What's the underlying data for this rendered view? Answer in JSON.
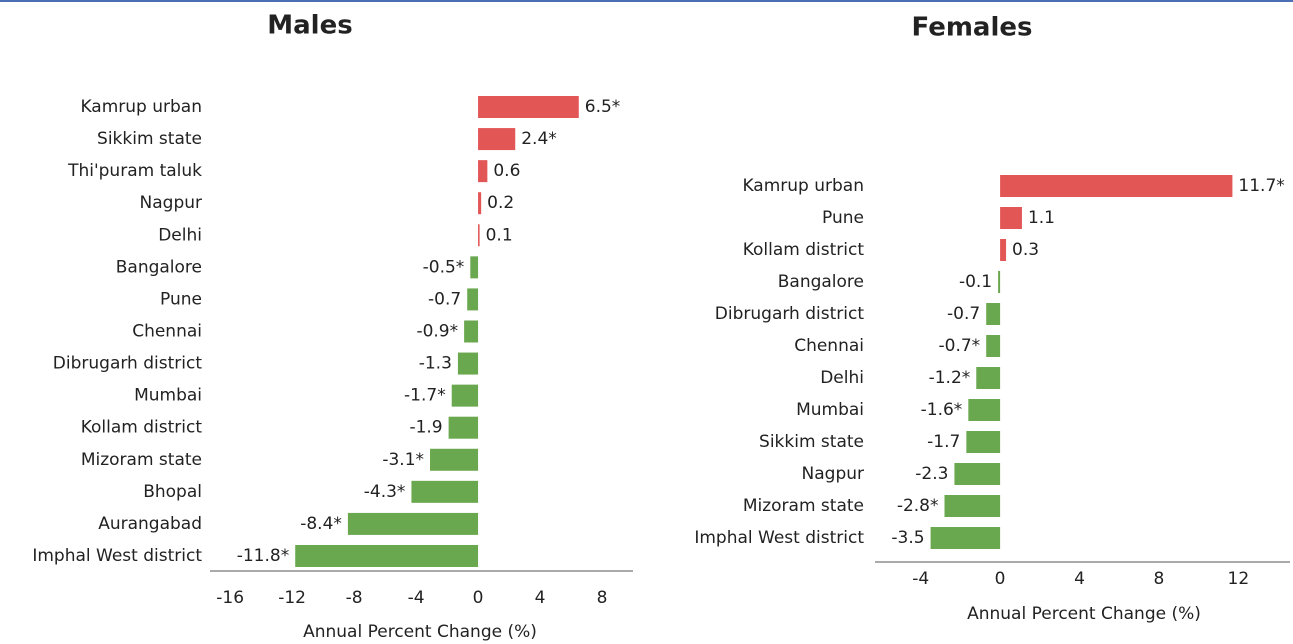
{
  "chart_data": [
    {
      "type": "barh",
      "title": "Males",
      "categories": [
        "Kamrup urban",
        "Sikkim state",
        "Thi'puram taluk",
        "Nagpur",
        "Delhi",
        "Bangalore",
        "Pune",
        "Chennai",
        "Dibrugarh district",
        "Mumbai",
        "Kollam district",
        "Mizoram state",
        "Bhopal",
        "Aurangabad",
        "Imphal West district"
      ],
      "values": [
        6.5,
        2.4,
        0.6,
        0.2,
        0.1,
        -0.5,
        -0.7,
        -0.9,
        -1.3,
        -1.7,
        -1.9,
        -3.1,
        -4.3,
        -8.4,
        -11.8
      ],
      "value_labels": [
        "6.5*",
        "2.4*",
        "0.6",
        "0.2",
        "0.1",
        "-0.5*",
        "-0.7",
        "-0.9*",
        "-1.3",
        "-1.7*",
        "-1.9",
        "-3.1*",
        "-4.3*",
        "-8.4*",
        "-11.8*"
      ],
      "xlabel": "Annual Percent Change (%)",
      "xlim": [
        -17.3,
        10
      ],
      "xticks": [
        -16,
        -12,
        -8,
        -4,
        0,
        4,
        8
      ],
      "color_positive": "#e35656",
      "color_negative": "#6aa84f"
    },
    {
      "type": "barh",
      "title": "Females",
      "categories": [
        "Kamrup urban",
        "Pune",
        "Kollam district",
        "Bangalore",
        "Dibrugarh district",
        "Chennai",
        "Delhi",
        "Mumbai",
        "Sikkim state",
        "Nagpur",
        "Mizoram state",
        "Imphal West district"
      ],
      "values": [
        11.7,
        1.1,
        0.3,
        -0.1,
        -0.7,
        -0.7,
        -1.2,
        -1.6,
        -1.7,
        -2.3,
        -2.8,
        -3.5
      ],
      "value_labels": [
        "11.7*",
        "1.1",
        "0.3",
        "-0.1",
        "-0.7",
        "-0.7*",
        "-1.2*",
        "-1.6*",
        "-1.7",
        "-2.3",
        "-2.8*",
        "-3.5"
      ],
      "xlabel": "Annual Percent Change (%)",
      "xlim": [
        -6.3,
        14.6
      ],
      "xticks": [
        -4,
        0,
        4,
        8,
        12
      ],
      "color_positive": "#e35656",
      "color_negative": "#6aa84f"
    }
  ]
}
